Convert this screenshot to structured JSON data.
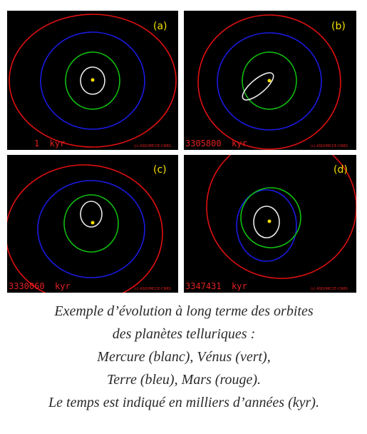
{
  "panels": [
    {
      "label": "(a)",
      "time": "1  kyr",
      "credit": "(c) ASD/IMCCE-CNRS"
    },
    {
      "label": "(b)",
      "time": "3305800  kyr",
      "credit": "(c) ASD/IMCCE-CNRS"
    },
    {
      "label": "(c)",
      "time": "3330060  kyr",
      "credit": "(c) ASD/IMCCE-CNRS"
    },
    {
      "label": "(d)",
      "time": "3347431  kyr",
      "credit": "(c) ASD/IMCCE-CNRS"
    }
  ],
  "caption": [
    "Exemple d’évolution à long terme des orbites",
    "des planètes telluriques :",
    "Mercure (blanc), Vénus (vert),",
    "Terre (bleu), Mars (rouge).",
    "Le temps est indiqué en milliers d’années (kyr)."
  ]
}
